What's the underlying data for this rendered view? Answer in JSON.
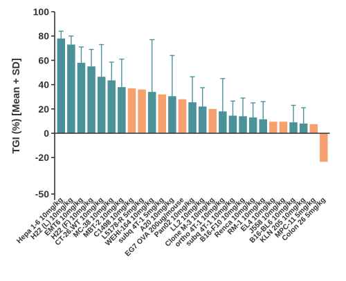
{
  "chart_data": {
    "type": "bar",
    "title": "",
    "xlabel": "",
    "ylabel": "TGI (%) [Mean + SD]",
    "ylim": [
      -55,
      100
    ],
    "yticks": [
      100,
      80,
      60,
      40,
      20,
      0,
      -20,
      -50
    ],
    "ytick_labels": [
      "100",
      "80",
      "60",
      "40",
      "20",
      "0",
      "-20",
      "-50"
    ],
    "colors": {
      "teal": "#4a9199",
      "orange": "#f5a06e",
      "axis": "#333333"
    },
    "categories": [
      "Hepa 1-6 10mg/kg",
      "H22 (L) 10mg/kg",
      "EMT6 10mg/kg",
      "H22 (F) 10mg/kg",
      "CT-26.WT 10mg/kg",
      "MC-38 10mg/kg",
      "MBT-2 10mg/kg",
      "C1498 10mg/kg",
      "L5178-R 5mg/kg",
      "WEHI-164 10mg/kg",
      "subq 4T-1 5mg/kg",
      "A20 10mg/kg",
      "EG7 OVA 200ug/mouse",
      "Pan02 10mg/kg",
      "LL2 10mg/kg",
      "Clone M-3 10mg/kg",
      "ortho 4T-1 10mg/kg",
      "subq 4T-1 10mg/kg",
      "B16-F10 10mg/kg",
      "Renca 10mg/kg",
      "RM-1 10mg/kg",
      "EL4 10mg/kg",
      "J558 10mg/kg",
      "B16-BL6 10mg/kg",
      "KLN 205 10mg/kg",
      "MPC-11 5mg/kg",
      "Colon 26 5mg/kg"
    ],
    "values": [
      78,
      73,
      58,
      55,
      46.5,
      43.5,
      38,
      37,
      36,
      34,
      32,
      30.5,
      28,
      25.5,
      22,
      20,
      18,
      14.5,
      14,
      13,
      11.5,
      9.5,
      9.5,
      9,
      8,
      7.5,
      -23.5
    ],
    "sd_upper": [
      84,
      80,
      71,
      69,
      73,
      58.5,
      61,
      null,
      null,
      77,
      null,
      64,
      null,
      46.5,
      37.5,
      null,
      45,
      26.5,
      29,
      25,
      26,
      null,
      null,
      23,
      21,
      null,
      null
    ],
    "bar_colors": [
      "teal",
      "teal",
      "teal",
      "teal",
      "teal",
      "teal",
      "teal",
      "orange",
      "orange",
      "teal",
      "orange",
      "teal",
      "orange",
      "teal",
      "teal",
      "orange",
      "teal",
      "teal",
      "teal",
      "teal",
      "teal",
      "orange",
      "orange",
      "teal",
      "teal",
      "orange",
      "orange"
    ]
  }
}
